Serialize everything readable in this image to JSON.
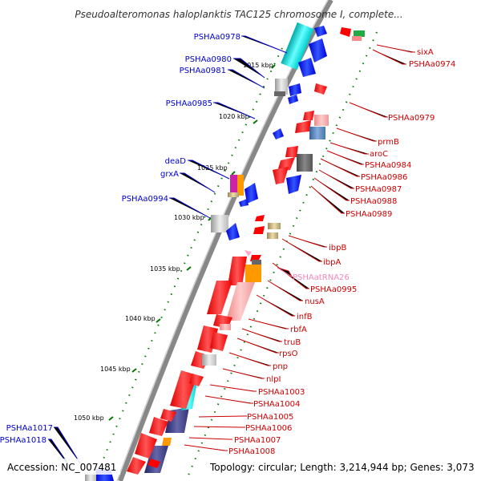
{
  "title": "Pseudoalteromonas haloplanktis TAC125 chromosome I, complete...",
  "footer": {
    "accession": "Accession: NC_007481",
    "topology": "Topology: circular; Length: 3,214,944 bp; Genes: 3,073"
  },
  "ticks": [
    "1015 kbp",
    "1020 kbp",
    "1025 kbp",
    "1030 kbp",
    "1035 kbp",
    "1040 kbp",
    "1045 kbp",
    "1050 kbp"
  ],
  "left_labels": [
    "PSHAa0978",
    "PSHAa0980",
    "PSHAa0981",
    "PSHAa0985",
    "deaD",
    "grxA",
    "PSHAa0994",
    "PSHAa1017",
    "PSHAa1018"
  ],
  "right_labels": [
    "sixA",
    "PSHAa0974",
    "PSHAa0979",
    "prmB",
    "aroC",
    "PSHAa0984",
    "PSHAa0986",
    "PSHAa0987",
    "PSHAa0988",
    "PSHAa0989",
    "ibpB",
    "ibpA",
    "PSHAatRNA26",
    "PSHAa0995",
    "nusA",
    "infB",
    "rbfA",
    "truB",
    "rpsO",
    "pnp",
    "nlpI",
    "PSHAa1003",
    "PSHAa1004",
    "PSHAa1005",
    "PSHAa1006",
    "PSHAa1007",
    "PSHAa1008"
  ],
  "colors": {
    "left_label": "#0000cc",
    "right_label": "#cc0000",
    "trna_label": "#ee88bb",
    "forward_gene": "#0000ff",
    "reverse_gene": "#ff0000",
    "backbone": "#888888",
    "tick": "#007700"
  }
}
